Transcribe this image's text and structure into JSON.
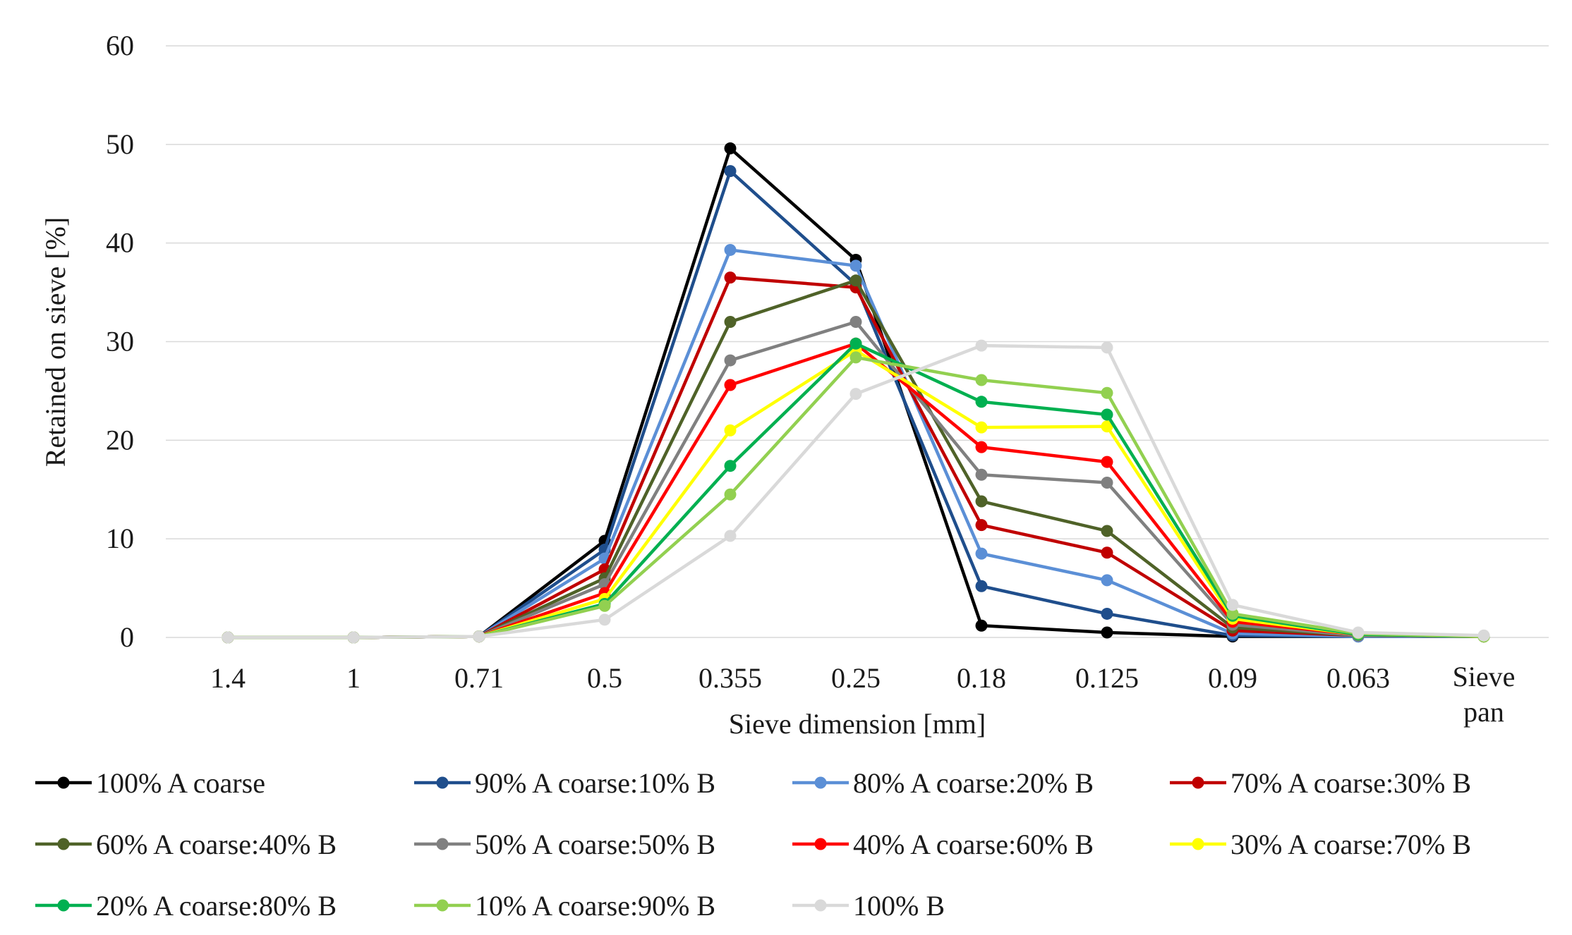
{
  "chart_data": {
    "type": "line",
    "title": "",
    "xlabel": "Sieve dimension [mm]",
    "ylabel": "Retained on sieve [%]",
    "categories": [
      "1.4",
      "1",
      "0.71",
      "0.5",
      "0.355",
      "0.25",
      "0.18",
      "0.125",
      "0.09",
      "0.063",
      "Sieve pan"
    ],
    "ylim": [
      0,
      60
    ],
    "yticks": [
      0,
      10,
      20,
      30,
      40,
      50,
      60
    ],
    "grid": true,
    "legend_position": "bottom",
    "series": [
      {
        "name": "100% A coarse",
        "color": "#000000",
        "values": [
          0,
          0,
          0.1,
          9.8,
          49.6,
          38.3,
          1.2,
          0.5,
          0.1,
          0.1,
          0.1
        ]
      },
      {
        "name": "90% A coarse:10% B",
        "color": "#1f4e8c",
        "values": [
          0,
          0,
          0.1,
          8.9,
          47.3,
          35.8,
          5.2,
          2.4,
          0.2,
          0.1,
          0.1
        ]
      },
      {
        "name": "80% A coarse:20% B",
        "color": "#5b8fd6",
        "values": [
          0,
          0,
          0.1,
          8.0,
          39.3,
          37.7,
          8.5,
          5.8,
          0.4,
          0.1,
          0.1
        ]
      },
      {
        "name": "70% A coarse:30% B",
        "color": "#c00000",
        "values": [
          0,
          0,
          0.1,
          6.9,
          36.5,
          35.5,
          11.4,
          8.6,
          0.7,
          0.2,
          0.1
        ]
      },
      {
        "name": "60% A coarse:40% B",
        "color": "#4f6228",
        "values": [
          0,
          0,
          0.1,
          6.0,
          32.0,
          36.2,
          13.8,
          10.8,
          1.0,
          0.2,
          0.1
        ]
      },
      {
        "name": "50% A coarse:50% B",
        "color": "#808080",
        "values": [
          0,
          0,
          0.1,
          5.4,
          28.1,
          32.0,
          16.5,
          15.7,
          1.3,
          0.2,
          0.1
        ]
      },
      {
        "name": "40% A coarse:60% B",
        "color": "#ff0000",
        "values": [
          0,
          0,
          0.1,
          4.5,
          25.6,
          29.8,
          19.3,
          17.8,
          1.6,
          0.3,
          0.1
        ]
      },
      {
        "name": "30% A coarse:70% B",
        "color": "#ffff00",
        "values": [
          0,
          0,
          0.1,
          3.9,
          21.0,
          29.1,
          21.3,
          21.4,
          1.9,
          0.3,
          0.1
        ]
      },
      {
        "name": "20% A coarse:80% B",
        "color": "#00b050",
        "values": [
          0,
          0,
          0.1,
          3.4,
          17.4,
          29.8,
          23.9,
          22.6,
          2.2,
          0.3,
          0.1
        ]
      },
      {
        "name": "10% A coarse:90% B",
        "color": "#92d050",
        "values": [
          0,
          0,
          0.1,
          3.2,
          14.5,
          28.4,
          26.1,
          24.8,
          2.4,
          0.4,
          0.1
        ]
      },
      {
        "name": "100% B",
        "color": "#d9d9d9",
        "values": [
          0,
          0,
          0.1,
          1.8,
          10.3,
          24.7,
          29.6,
          29.4,
          3.3,
          0.5,
          0.2
        ]
      }
    ]
  }
}
